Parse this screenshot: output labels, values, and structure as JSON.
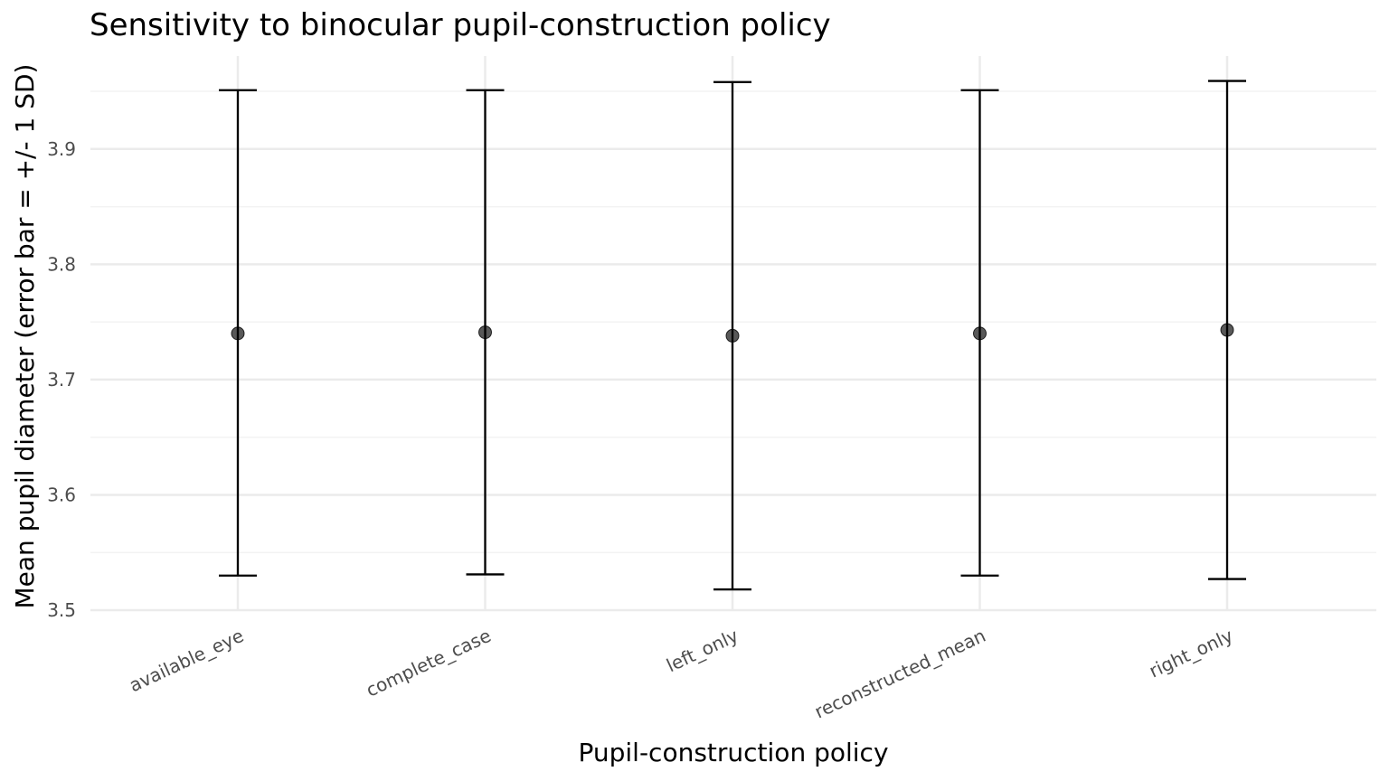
{
  "chart_data": {
    "type": "errorbar",
    "title": "Sensitivity to binocular pupil-construction policy",
    "xlabel": "Pupil-construction policy",
    "ylabel": "Mean pupil diameter (error bar = +/- 1 SD)",
    "categories": [
      "available_eye",
      "complete_case",
      "left_only",
      "reconstructed_mean",
      "right_only"
    ],
    "mean": [
      3.74,
      3.741,
      3.738,
      3.74,
      3.743
    ],
    "lower": [
      3.53,
      3.531,
      3.518,
      3.53,
      3.527
    ],
    "upper": [
      3.951,
      3.951,
      3.958,
      3.951,
      3.959
    ],
    "ylim": [
      3.5,
      3.97
    ],
    "yticks": [
      3.5,
      3.6,
      3.7,
      3.8,
      3.9
    ],
    "grid": true,
    "legend": "none",
    "colors": {
      "point": "#000000",
      "errorbar": "#000000",
      "grid": "#ebebeb",
      "tick_text": "#4d4d4d"
    }
  }
}
